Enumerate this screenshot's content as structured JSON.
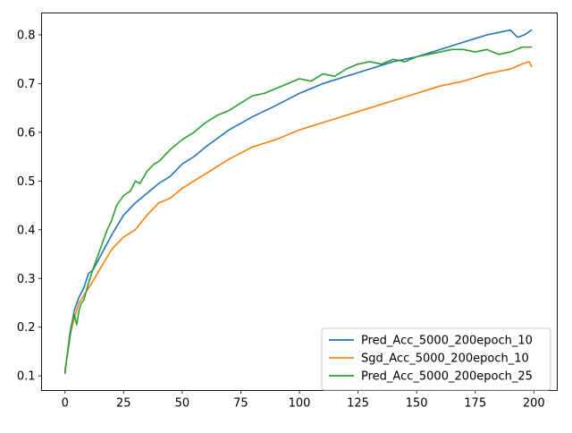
{
  "chart_data": {
    "type": "line",
    "title": "",
    "xlabel": "",
    "ylabel": "",
    "xlim": [
      -10,
      210
    ],
    "ylim": [
      0.07,
      0.845
    ],
    "xticks": [
      0,
      25,
      50,
      75,
      100,
      125,
      150,
      175,
      200
    ],
    "yticks": [
      0.1,
      0.2,
      0.3,
      0.4,
      0.5,
      0.6,
      0.7,
      0.8
    ],
    "grid": false,
    "legend_position": "lower-right",
    "series": [
      {
        "name": "Pred_Acc_5000_200epoch_10",
        "color": "#1f77b4",
        "x": [
          0,
          2,
          4,
          6,
          8,
          10,
          12,
          15,
          20,
          25,
          30,
          35,
          40,
          45,
          50,
          55,
          60,
          70,
          80,
          90,
          100,
          110,
          120,
          130,
          140,
          150,
          160,
          170,
          180,
          185,
          190,
          193,
          196,
          199
        ],
        "y": [
          0.105,
          0.185,
          0.235,
          0.262,
          0.28,
          0.31,
          0.318,
          0.345,
          0.39,
          0.43,
          0.455,
          0.475,
          0.495,
          0.51,
          0.535,
          0.55,
          0.57,
          0.605,
          0.632,
          0.655,
          0.68,
          0.7,
          0.715,
          0.73,
          0.745,
          0.755,
          0.77,
          0.785,
          0.8,
          0.805,
          0.81,
          0.795,
          0.8,
          0.81
        ]
      },
      {
        "name": "Sgd_Acc_5000_200epoch_10",
        "color": "#ff7f0e",
        "x": [
          0,
          2,
          4,
          6,
          8,
          10,
          12,
          15,
          20,
          25,
          30,
          35,
          40,
          45,
          50,
          55,
          60,
          70,
          80,
          90,
          100,
          110,
          120,
          130,
          140,
          150,
          160,
          170,
          180,
          190,
          195,
          198,
          199
        ],
        "y": [
          0.11,
          0.18,
          0.22,
          0.25,
          0.265,
          0.28,
          0.295,
          0.32,
          0.36,
          0.385,
          0.4,
          0.43,
          0.455,
          0.465,
          0.485,
          0.5,
          0.515,
          0.545,
          0.57,
          0.585,
          0.605,
          0.62,
          0.635,
          0.65,
          0.665,
          0.68,
          0.695,
          0.705,
          0.72,
          0.73,
          0.74,
          0.745,
          0.735
        ]
      },
      {
        "name": "Pred_Acc_5000_200epoch_25",
        "color": "#2ca02c",
        "x": [
          0,
          2,
          3,
          4,
          5,
          6,
          7,
          8,
          10,
          12,
          15,
          18,
          20,
          22,
          25,
          28,
          30,
          32,
          35,
          38,
          40,
          45,
          50,
          55,
          60,
          65,
          70,
          75,
          80,
          85,
          90,
          95,
          100,
          105,
          110,
          115,
          120,
          125,
          130,
          135,
          140,
          145,
          150,
          155,
          160,
          165,
          170,
          175,
          180,
          185,
          190,
          195,
          199
        ],
        "y": [
          0.11,
          0.175,
          0.21,
          0.225,
          0.205,
          0.235,
          0.25,
          0.255,
          0.29,
          0.32,
          0.36,
          0.4,
          0.42,
          0.45,
          0.47,
          0.48,
          0.5,
          0.495,
          0.52,
          0.535,
          0.54,
          0.565,
          0.585,
          0.6,
          0.62,
          0.635,
          0.645,
          0.66,
          0.675,
          0.68,
          0.69,
          0.7,
          0.71,
          0.705,
          0.72,
          0.715,
          0.73,
          0.74,
          0.745,
          0.74,
          0.75,
          0.745,
          0.755,
          0.76,
          0.765,
          0.77,
          0.77,
          0.765,
          0.77,
          0.76,
          0.765,
          0.775,
          0.775
        ]
      }
    ]
  }
}
